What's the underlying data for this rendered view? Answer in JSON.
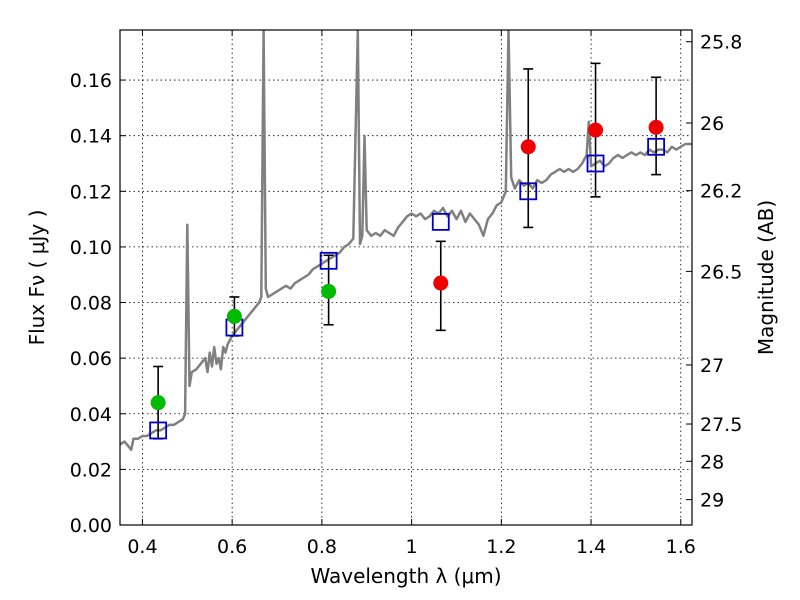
{
  "chart_data": {
    "type": "scatter",
    "title": "",
    "xlabel": "Wavelength  λ (μm)",
    "ylabel": "Flux  Fν  ( μJy )",
    "ylabel_right": "Magnitude (AB)",
    "xlim": [
      0.35,
      1.625
    ],
    "ylim": [
      0,
      0.178
    ],
    "grid": true,
    "x_ticks": [
      {
        "value": 0.4,
        "label": "0.4"
      },
      {
        "value": 0.6,
        "label": "0.6"
      },
      {
        "value": 0.8,
        "label": "0.8"
      },
      {
        "value": 1.0,
        "label": "1"
      },
      {
        "value": 1.2,
        "label": "1.2"
      },
      {
        "value": 1.4,
        "label": "1.4"
      },
      {
        "value": 1.6,
        "label": "1.6"
      }
    ],
    "y_ticks": [
      {
        "value": 0.0,
        "label": "0.00"
      },
      {
        "value": 0.02,
        "label": "0.02"
      },
      {
        "value": 0.04,
        "label": "0.04"
      },
      {
        "value": 0.06,
        "label": "0.06"
      },
      {
        "value": 0.08,
        "label": "0.08"
      },
      {
        "value": 0.1,
        "label": "0.10"
      },
      {
        "value": 0.12,
        "label": "0.12"
      },
      {
        "value": 0.14,
        "label": "0.14"
      },
      {
        "value": 0.16,
        "label": "0.16"
      }
    ],
    "right_ticks": [
      {
        "value": 25.8,
        "label": "25.8"
      },
      {
        "value": 26.0,
        "label": "26"
      },
      {
        "value": 26.2,
        "label": "26.2"
      },
      {
        "value": 26.5,
        "label": "26.5"
      },
      {
        "value": 27.0,
        "label": "27"
      },
      {
        "value": 27.5,
        "label": "27.5"
      },
      {
        "value": 28.0,
        "label": "28"
      },
      {
        "value": 29.0,
        "label": "29"
      }
    ],
    "colors": {
      "spectrum": "#808080",
      "green": "#00bb00",
      "red": "#ee0000",
      "model": "#0000cc",
      "errorbar": "#000000"
    },
    "series": [
      {
        "type": "line",
        "points": [
          [
            0.35,
            0.029
          ],
          [
            0.36,
            0.03
          ],
          [
            0.37,
            0.028
          ],
          [
            0.375,
            0.027
          ],
          [
            0.38,
            0.031
          ],
          [
            0.39,
            0.031
          ],
          [
            0.4,
            0.032
          ],
          [
            0.41,
            0.032
          ],
          [
            0.42,
            0.033
          ],
          [
            0.43,
            0.034
          ],
          [
            0.44,
            0.034
          ],
          [
            0.45,
            0.035
          ],
          [
            0.46,
            0.036
          ],
          [
            0.47,
            0.036
          ],
          [
            0.48,
            0.037
          ],
          [
            0.49,
            0.038
          ],
          [
            0.495,
            0.04
          ],
          [
            0.5,
            0.108
          ],
          [
            0.505,
            0.05
          ],
          [
            0.51,
            0.055
          ],
          [
            0.52,
            0.056
          ],
          [
            0.53,
            0.058
          ],
          [
            0.54,
            0.06
          ],
          [
            0.545,
            0.055
          ],
          [
            0.55,
            0.062
          ],
          [
            0.555,
            0.057
          ],
          [
            0.56,
            0.064
          ],
          [
            0.565,
            0.058
          ],
          [
            0.57,
            0.06
          ],
          [
            0.575,
            0.056
          ],
          [
            0.58,
            0.064
          ],
          [
            0.585,
            0.062
          ],
          [
            0.59,
            0.065
          ],
          [
            0.6,
            0.068
          ],
          [
            0.61,
            0.07
          ],
          [
            0.62,
            0.072
          ],
          [
            0.63,
            0.074
          ],
          [
            0.64,
            0.076
          ],
          [
            0.65,
            0.078
          ],
          [
            0.66,
            0.08
          ],
          [
            0.665,
            0.082
          ],
          [
            0.67,
            0.178
          ],
          [
            0.675,
            0.085
          ],
          [
            0.68,
            0.082
          ],
          [
            0.69,
            0.083
          ],
          [
            0.7,
            0.084
          ],
          [
            0.71,
            0.085
          ],
          [
            0.72,
            0.086
          ],
          [
            0.73,
            0.085
          ],
          [
            0.74,
            0.087
          ],
          [
            0.75,
            0.088
          ],
          [
            0.76,
            0.089
          ],
          [
            0.77,
            0.09
          ],
          [
            0.78,
            0.092
          ],
          [
            0.79,
            0.093
          ],
          [
            0.8,
            0.094
          ],
          [
            0.81,
            0.095
          ],
          [
            0.82,
            0.096
          ],
          [
            0.83,
            0.097
          ],
          [
            0.84,
            0.098
          ],
          [
            0.85,
            0.1
          ],
          [
            0.86,
            0.101
          ],
          [
            0.87,
            0.103
          ],
          [
            0.88,
            0.178
          ],
          [
            0.885,
            0.101
          ],
          [
            0.89,
            0.104
          ],
          [
            0.895,
            0.14
          ],
          [
            0.9,
            0.106
          ],
          [
            0.91,
            0.104
          ],
          [
            0.92,
            0.105
          ],
          [
            0.93,
            0.104
          ],
          [
            0.94,
            0.106
          ],
          [
            0.95,
            0.105
          ],
          [
            0.96,
            0.104
          ],
          [
            0.97,
            0.107
          ],
          [
            0.98,
            0.109
          ],
          [
            0.99,
            0.111
          ],
          [
            1.0,
            0.112
          ],
          [
            1.01,
            0.111
          ],
          [
            1.02,
            0.112
          ],
          [
            1.03,
            0.11
          ],
          [
            1.04,
            0.111
          ],
          [
            1.05,
            0.113
          ],
          [
            1.06,
            0.112
          ],
          [
            1.07,
            0.114
          ],
          [
            1.08,
            0.111
          ],
          [
            1.09,
            0.113
          ],
          [
            1.1,
            0.11
          ],
          [
            1.11,
            0.113
          ],
          [
            1.12,
            0.109
          ],
          [
            1.13,
            0.112
          ],
          [
            1.14,
            0.11
          ],
          [
            1.15,
            0.108
          ],
          [
            1.16,
            0.104
          ],
          [
            1.17,
            0.11
          ],
          [
            1.18,
            0.112
          ],
          [
            1.19,
            0.115
          ],
          [
            1.2,
            0.116
          ],
          [
            1.21,
            0.12
          ],
          [
            1.216,
            0.178
          ],
          [
            1.222,
            0.125
          ],
          [
            1.23,
            0.121
          ],
          [
            1.24,
            0.124
          ],
          [
            1.25,
            0.122
          ],
          [
            1.26,
            0.123
          ],
          [
            1.27,
            0.121
          ],
          [
            1.28,
            0.124
          ],
          [
            1.29,
            0.123
          ],
          [
            1.3,
            0.124
          ],
          [
            1.31,
            0.126
          ],
          [
            1.32,
            0.127
          ],
          [
            1.33,
            0.128
          ],
          [
            1.34,
            0.127
          ],
          [
            1.35,
            0.128
          ],
          [
            1.36,
            0.127
          ],
          [
            1.37,
            0.128
          ],
          [
            1.38,
            0.13
          ],
          [
            1.39,
            0.133
          ],
          [
            1.395,
            0.145
          ],
          [
            1.4,
            0.129
          ],
          [
            1.41,
            0.13
          ],
          [
            1.42,
            0.131
          ],
          [
            1.43,
            0.129
          ],
          [
            1.44,
            0.13
          ],
          [
            1.45,
            0.132
          ],
          [
            1.46,
            0.133
          ],
          [
            1.47,
            0.132
          ],
          [
            1.48,
            0.133
          ],
          [
            1.49,
            0.134
          ],
          [
            1.5,
            0.133
          ],
          [
            1.51,
            0.134
          ],
          [
            1.52,
            0.133
          ],
          [
            1.53,
            0.135
          ],
          [
            1.54,
            0.134
          ],
          [
            1.55,
            0.135
          ],
          [
            1.56,
            0.135
          ],
          [
            1.57,
            0.134
          ],
          [
            1.58,
            0.136
          ],
          [
            1.59,
            0.135
          ],
          [
            1.6,
            0.136
          ],
          [
            1.61,
            0.137
          ],
          [
            1.625,
            0.137
          ]
        ]
      },
      {
        "type": "scatter",
        "marker": "open-square",
        "points": [
          [
            0.435,
            0.034
          ],
          [
            0.605,
            0.071
          ],
          [
            0.815,
            0.095
          ],
          [
            1.065,
            0.109
          ],
          [
            1.26,
            0.12
          ],
          [
            1.41,
            0.13
          ],
          [
            1.545,
            0.136
          ]
        ]
      },
      {
        "type": "scatter",
        "marker": "filled-circle",
        "color_key": "green",
        "points": [
          {
            "x": 0.435,
            "y": 0.044,
            "err": [
              0.031,
              0.057
            ]
          },
          {
            "x": 0.605,
            "y": 0.075,
            "err": [
              0.068,
              0.082
            ]
          },
          {
            "x": 0.815,
            "y": 0.084,
            "err": [
              0.072,
              0.097
            ]
          }
        ]
      },
      {
        "type": "scatter",
        "marker": "filled-circle",
        "color_key": "red",
        "points": [
          {
            "x": 1.065,
            "y": 0.087,
            "err": [
              0.07,
              0.102
            ]
          },
          {
            "x": 1.26,
            "y": 0.136,
            "err": [
              0.107,
              0.164
            ]
          },
          {
            "x": 1.41,
            "y": 0.142,
            "err": [
              0.118,
              0.166
            ]
          },
          {
            "x": 1.545,
            "y": 0.143,
            "err": [
              0.126,
              0.161
            ]
          }
        ]
      }
    ]
  }
}
